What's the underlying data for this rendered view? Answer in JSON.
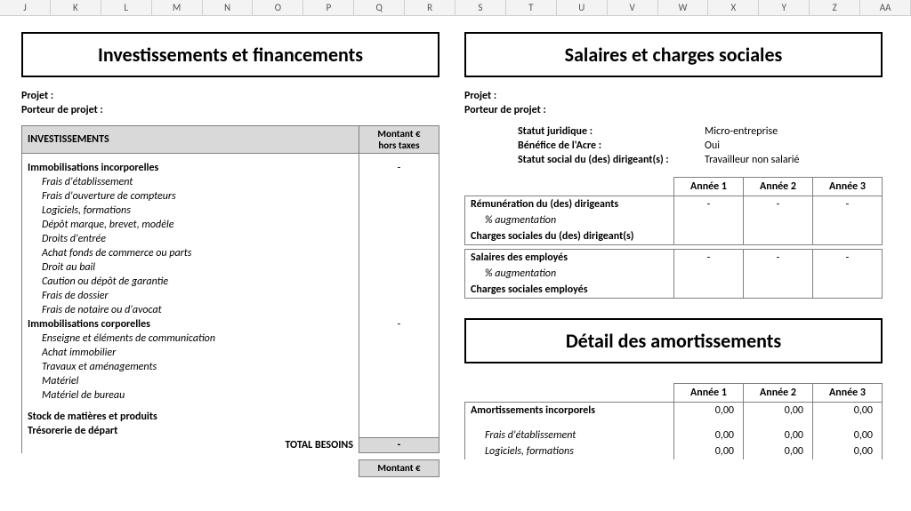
{
  "colHeaders": [
    "J",
    "K",
    "L",
    "M",
    "N",
    "O",
    "P",
    "Q",
    "R",
    "S",
    "T",
    "U",
    "V",
    "W",
    "X",
    "Y",
    "Z",
    "AA"
  ],
  "left": {
    "title": "Investissements et financements",
    "meta": {
      "projet": "Projet :",
      "porteur": "Porteur de projet :"
    },
    "table": {
      "sectionHeader": "INVESTISSEMENTS",
      "amountHeader1": "Montant €",
      "amountHeader2": "hors taxes",
      "groups": [
        {
          "label": "Immobilisations incorporelles",
          "amount": "-",
          "items": [
            "Frais d'établissement",
            "Frais d'ouverture de compteurs",
            "Logiciels, formations",
            "Dépôt marque, brevet, modèle",
            "Droits d'entrée",
            "Achat fonds de commerce ou parts",
            "Droit au bail",
            "Caution ou dépôt de garantie",
            "Frais de dossier",
            "Frais de notaire ou d'avocat"
          ]
        },
        {
          "label": "Immobilisations corporelles",
          "amount": "-",
          "items": [
            "Enseigne et éléments de communication",
            "Achat immobilier",
            "Travaux et aménagements",
            "Matériel",
            "Matériel de bureau"
          ]
        }
      ],
      "extraRows": [
        "Stock de matières et produits",
        "Trésorerie de départ"
      ],
      "totalLabel": "TOTAL BESOINS",
      "totalAmount": "-",
      "nextHeader": "Montant €"
    }
  },
  "right": {
    "title1": "Salaires et charges sociales",
    "meta": {
      "projet": "Projet :",
      "porteur": "Porteur de projet :"
    },
    "status": [
      {
        "label": "Statut juridique :",
        "value": "Micro-entreprise"
      },
      {
        "label": "Bénéfice de l'Acre :",
        "value": "Oui"
      },
      {
        "label": "Statut social du (des) dirigeant(s) :",
        "value": "Travailleur non salarié"
      }
    ],
    "years": {
      "y1": "Année 1",
      "y2": "Année 2",
      "y3": "Année 3"
    },
    "salaryRows": [
      {
        "label": "Rémunération du (des) dirigeants",
        "bold": true,
        "dash": true
      },
      {
        "label": "% augmentation",
        "italic": true,
        "dash": false
      },
      {
        "label": "Charges sociales du (des) dirigeant(s)",
        "bold": true,
        "dash": false,
        "bottom": true
      }
    ],
    "salaryRows2": [
      {
        "label": "Salaires des employés",
        "bold": true,
        "dash": true
      },
      {
        "label": "% augmentation",
        "italic": true,
        "dash": false
      },
      {
        "label": "Charges sociales employés",
        "bold": true,
        "dash": false,
        "bottom": true
      }
    ],
    "title2": "Détail des amortissements",
    "amortRows": [
      {
        "label": "Amortissements incorporels",
        "bold": true,
        "v": "0,00"
      }
    ],
    "amortRows2": [
      {
        "label": "Frais d'établissement",
        "italic": true,
        "v": "0,00"
      },
      {
        "label": "Logiciels, formations",
        "italic": true,
        "v": "0,00"
      }
    ]
  },
  "colors": {
    "headerBg": "#d9d9d9",
    "border": "#808080",
    "colHeaderBg": "#f3f3f3"
  }
}
